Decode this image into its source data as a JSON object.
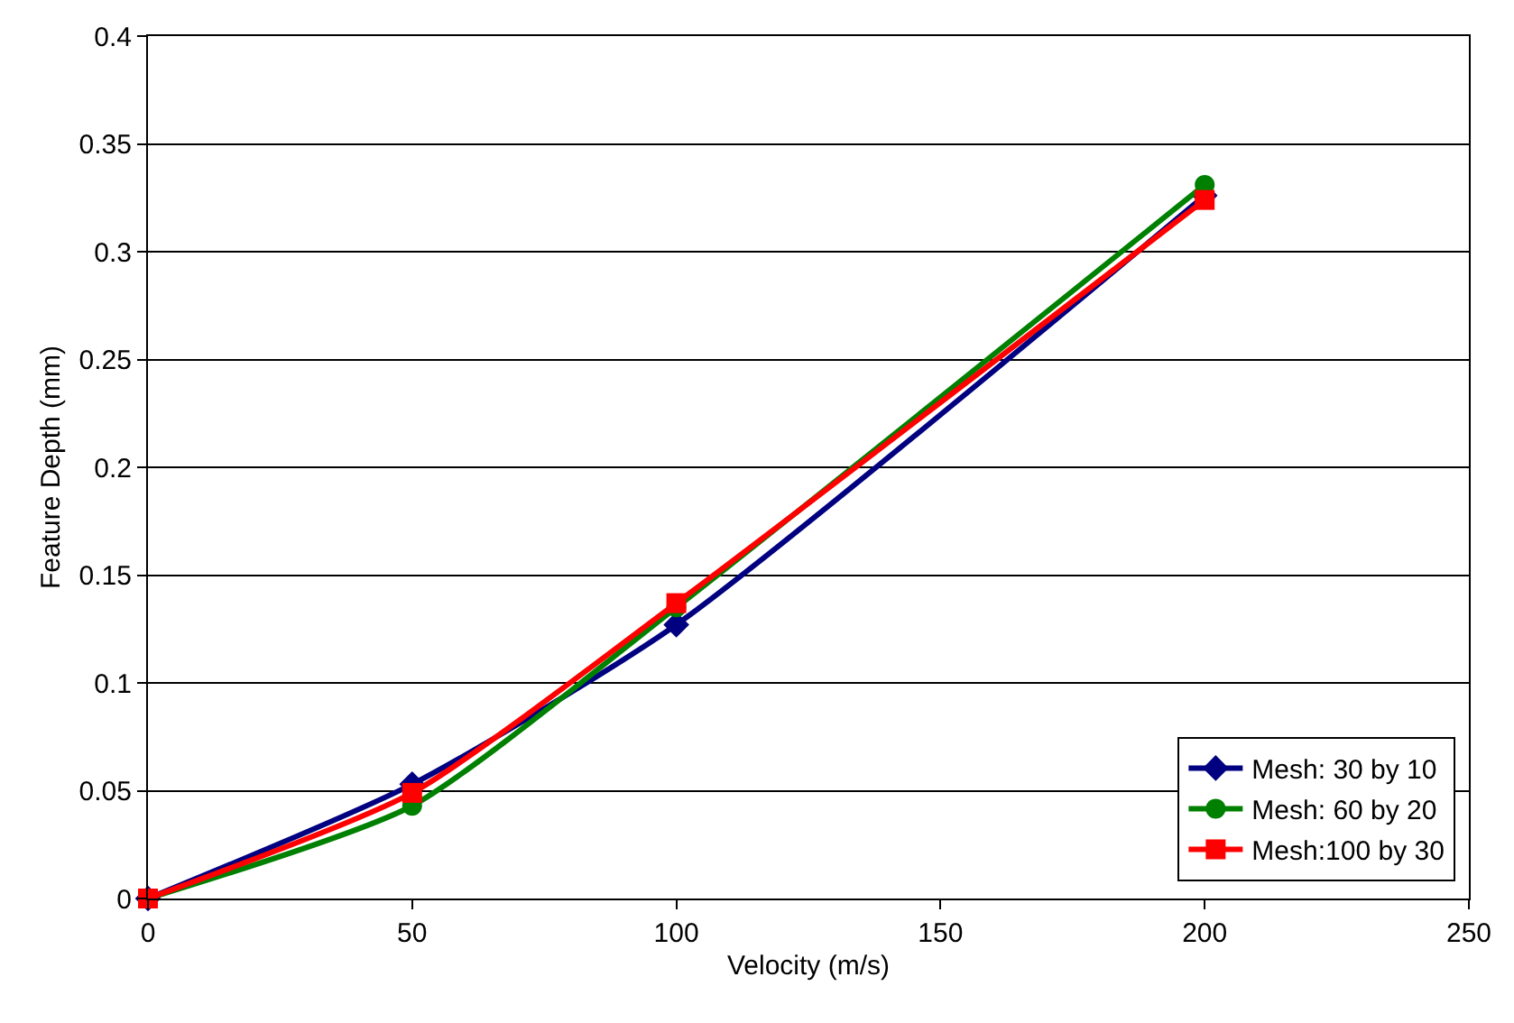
{
  "chart_data": {
    "type": "line",
    "xlabel": "Velocity (m/s)",
    "ylabel": "Feature Depth (mm)",
    "x": [
      0,
      50,
      100,
      200
    ],
    "series": [
      {
        "name": "Mesh: 30 by 10",
        "color": "#000080",
        "marker": "diamond",
        "values": [
          0,
          0.053,
          0.127,
          0.326
        ]
      },
      {
        "name": "Mesh: 60 by 20",
        "color": "#008000",
        "marker": "circle",
        "values": [
          0,
          0.043,
          0.135,
          0.331
        ]
      },
      {
        "name": "Mesh:100 by 30",
        "color": "#ff0000",
        "marker": "square",
        "values": [
          0,
          0.049,
          0.137,
          0.324
        ]
      }
    ],
    "xlim": [
      0,
      250
    ],
    "xticks": [
      0,
      50,
      100,
      150,
      200,
      250
    ],
    "ylim": [
      0,
      0.4
    ],
    "yticks": [
      0,
      0.05,
      0.1,
      0.15,
      0.2,
      0.25,
      0.3,
      0.35,
      0.4
    ],
    "grid": "y",
    "legend": "bottom right",
    "line_style": "solid"
  }
}
